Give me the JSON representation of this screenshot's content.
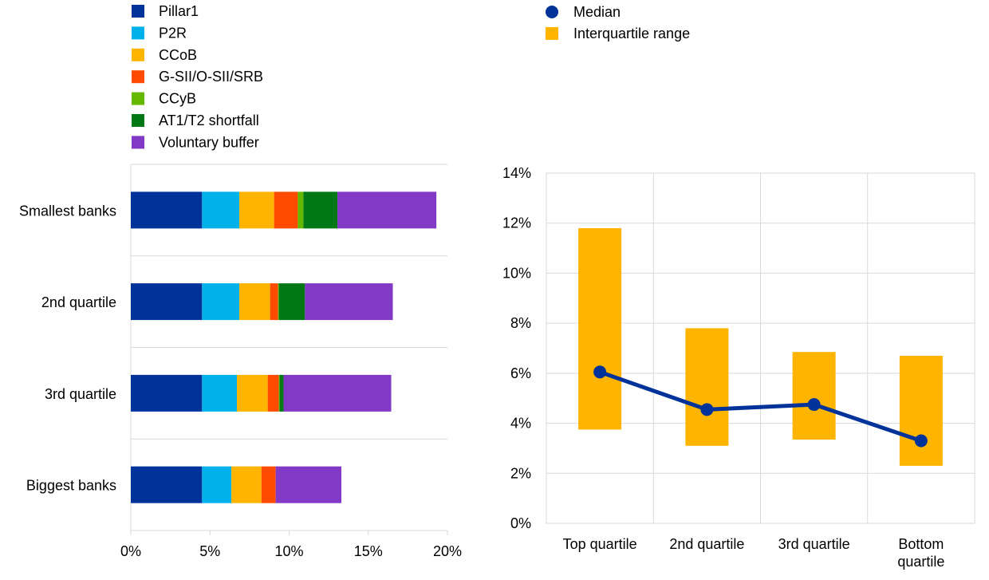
{
  "chart_data": [
    {
      "type": "bar",
      "orientation": "horizontal",
      "stacked": true,
      "categories": [
        "Smallest banks",
        "2nd quartile",
        "3rd quartile",
        "Biggest banks"
      ],
      "series": [
        {
          "name": "Pillar1",
          "color": "#003399",
          "values": [
            4.5,
            4.5,
            4.5,
            4.5
          ]
        },
        {
          "name": "P2R",
          "color": "#00b1ea",
          "values": [
            2.35,
            2.35,
            2.2,
            1.85
          ]
        },
        {
          "name": "CCoB",
          "color": "#ffb400",
          "values": [
            2.2,
            1.95,
            1.95,
            1.9
          ]
        },
        {
          "name": "G-SII/O-SII/SRB",
          "color": "#ff4b00",
          "values": [
            1.5,
            0.5,
            0.7,
            0.9
          ]
        },
        {
          "name": "CCyB",
          "color": "#65b800",
          "values": [
            0.35,
            0.05,
            0.05,
            0.0
          ]
        },
        {
          "name": "AT1/T2 shortfall",
          "color": "#007816",
          "values": [
            2.15,
            1.65,
            0.25,
            0.0
          ]
        },
        {
          "name": "Voluntary buffer",
          "color": "#8139c6",
          "values": [
            6.25,
            5.55,
            6.8,
            4.15
          ]
        }
      ],
      "xaxis": {
        "min": 0,
        "max": 20,
        "ticks": [
          "0%",
          "5%",
          "10%",
          "15%",
          "20%"
        ]
      },
      "grid": "horizontal-separators",
      "legend_position": "top-left"
    },
    {
      "type": "line",
      "categories": [
        "Top quartile",
        "2nd quartile",
        "3rd quartile",
        "Bottom quartile"
      ],
      "category_label_lines": [
        [
          "Top quartile"
        ],
        [
          "2nd quartile"
        ],
        [
          "3rd quartile"
        ],
        [
          "Bottom",
          "quartile"
        ]
      ],
      "series": [
        {
          "name": "Median",
          "color": "#003399",
          "values": [
            6.05,
            4.55,
            4.75,
            3.3
          ]
        },
        {
          "name": "Interquartile range",
          "color": "#ffb400",
          "type": "floating-bar",
          "low": [
            3.75,
            3.1,
            3.35,
            2.3
          ],
          "high": [
            11.8,
            7.8,
            6.85,
            6.7
          ]
        }
      ],
      "yaxis": {
        "min": 0,
        "max": 14,
        "ticks": [
          "0%",
          "2%",
          "4%",
          "6%",
          "8%",
          "10%",
          "12%",
          "14%"
        ]
      },
      "grid": true,
      "legend_position": "top"
    }
  ]
}
